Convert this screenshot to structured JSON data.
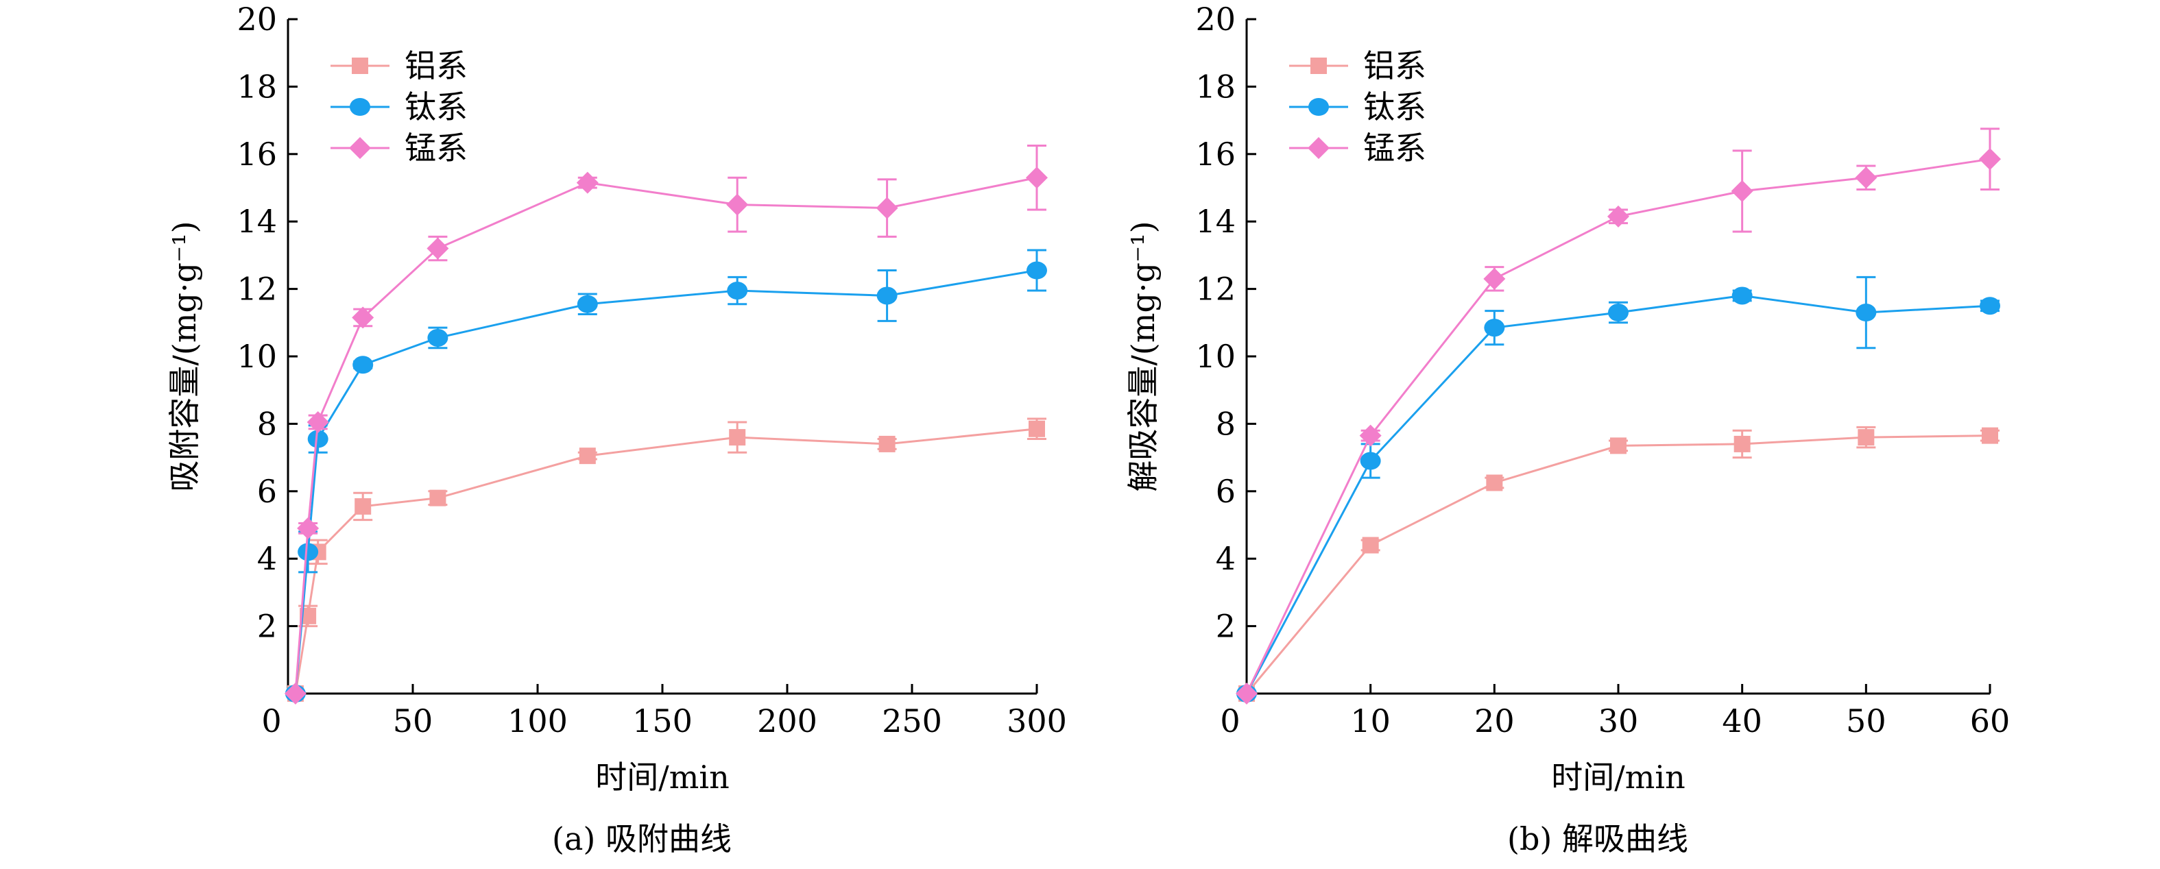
{
  "colors": {
    "aluminum": "#f4a0a0",
    "titanium": "#1aa0ee",
    "manganese": "#f27ecb",
    "axis": "#000000"
  },
  "chart_data": [
    {
      "type": "line",
      "caption": "(a) 吸附曲线",
      "xlabel": "时间/min",
      "ylabel": "吸附容量/(mg·g⁻¹)",
      "xlim": [
        0,
        300
      ],
      "ylim": [
        0,
        20
      ],
      "xticks": [
        0,
        50,
        100,
        150,
        200,
        250,
        300
      ],
      "yticks": [
        0,
        2,
        4,
        6,
        8,
        10,
        12,
        14,
        16,
        18,
        20
      ],
      "legend_position": "top-left",
      "series": [
        {
          "name": "铝系",
          "marker": "square",
          "color": "#f4a0a0",
          "x": [
            3,
            8,
            12,
            30,
            60,
            120,
            180,
            240,
            300
          ],
          "y": [
            0,
            2.3,
            4.2,
            5.55,
            5.8,
            7.05,
            7.6,
            7.4,
            7.85
          ],
          "err": [
            0,
            0.3,
            0.35,
            0.4,
            0.2,
            0.1,
            0.45,
            0.15,
            0.3
          ]
        },
        {
          "name": "钛系",
          "marker": "circle",
          "color": "#1aa0ee",
          "x": [
            3,
            8,
            12,
            30,
            60,
            120,
            180,
            240,
            300
          ],
          "y": [
            0,
            4.2,
            7.55,
            9.75,
            10.55,
            11.55,
            11.95,
            11.8,
            12.55
          ],
          "err": [
            0,
            0.6,
            0.4,
            0.1,
            0.3,
            0.3,
            0.4,
            0.75,
            0.6
          ]
        },
        {
          "name": "锰系",
          "marker": "diamond",
          "color": "#f27ecb",
          "x": [
            3,
            8,
            12,
            30,
            60,
            120,
            180,
            240,
            300
          ],
          "y": [
            0,
            4.9,
            8.05,
            11.15,
            13.2,
            15.15,
            14.5,
            14.4,
            15.3
          ],
          "err": [
            0,
            0.15,
            0.2,
            0.25,
            0.35,
            0.15,
            0.8,
            0.85,
            0.95
          ]
        }
      ]
    },
    {
      "type": "line",
      "caption": "(b) 解吸曲线",
      "xlabel": "时间/min",
      "ylabel": "解吸容量/(mg·g⁻¹)",
      "xlim": [
        0,
        60
      ],
      "ylim": [
        0,
        20
      ],
      "xticks": [
        0,
        10,
        20,
        30,
        40,
        50,
        60
      ],
      "yticks": [
        0,
        2,
        4,
        6,
        8,
        10,
        12,
        14,
        16,
        18,
        20
      ],
      "legend_position": "top-left",
      "series": [
        {
          "name": "铝系",
          "marker": "square",
          "color": "#f4a0a0",
          "x": [
            0,
            10,
            20,
            30,
            40,
            50,
            60
          ],
          "y": [
            0,
            4.4,
            6.25,
            7.35,
            7.4,
            7.6,
            7.65
          ],
          "err": [
            0,
            0.15,
            0.15,
            0.15,
            0.4,
            0.3,
            0.15
          ]
        },
        {
          "name": "钛系",
          "marker": "circle",
          "color": "#1aa0ee",
          "x": [
            0,
            10,
            20,
            30,
            40,
            50,
            60
          ],
          "y": [
            0,
            6.9,
            10.85,
            11.3,
            11.8,
            11.3,
            11.5
          ],
          "err": [
            0,
            0.5,
            0.5,
            0.3,
            0.15,
            1.05,
            0.15
          ]
        },
        {
          "name": "锰系",
          "marker": "diamond",
          "color": "#f27ecb",
          "x": [
            0,
            10,
            20,
            30,
            40,
            50,
            60
          ],
          "y": [
            0,
            7.65,
            12.3,
            14.15,
            14.9,
            15.3,
            15.85
          ],
          "err": [
            0,
            0.15,
            0.35,
            0.2,
            1.2,
            0.35,
            0.9
          ]
        }
      ]
    }
  ]
}
